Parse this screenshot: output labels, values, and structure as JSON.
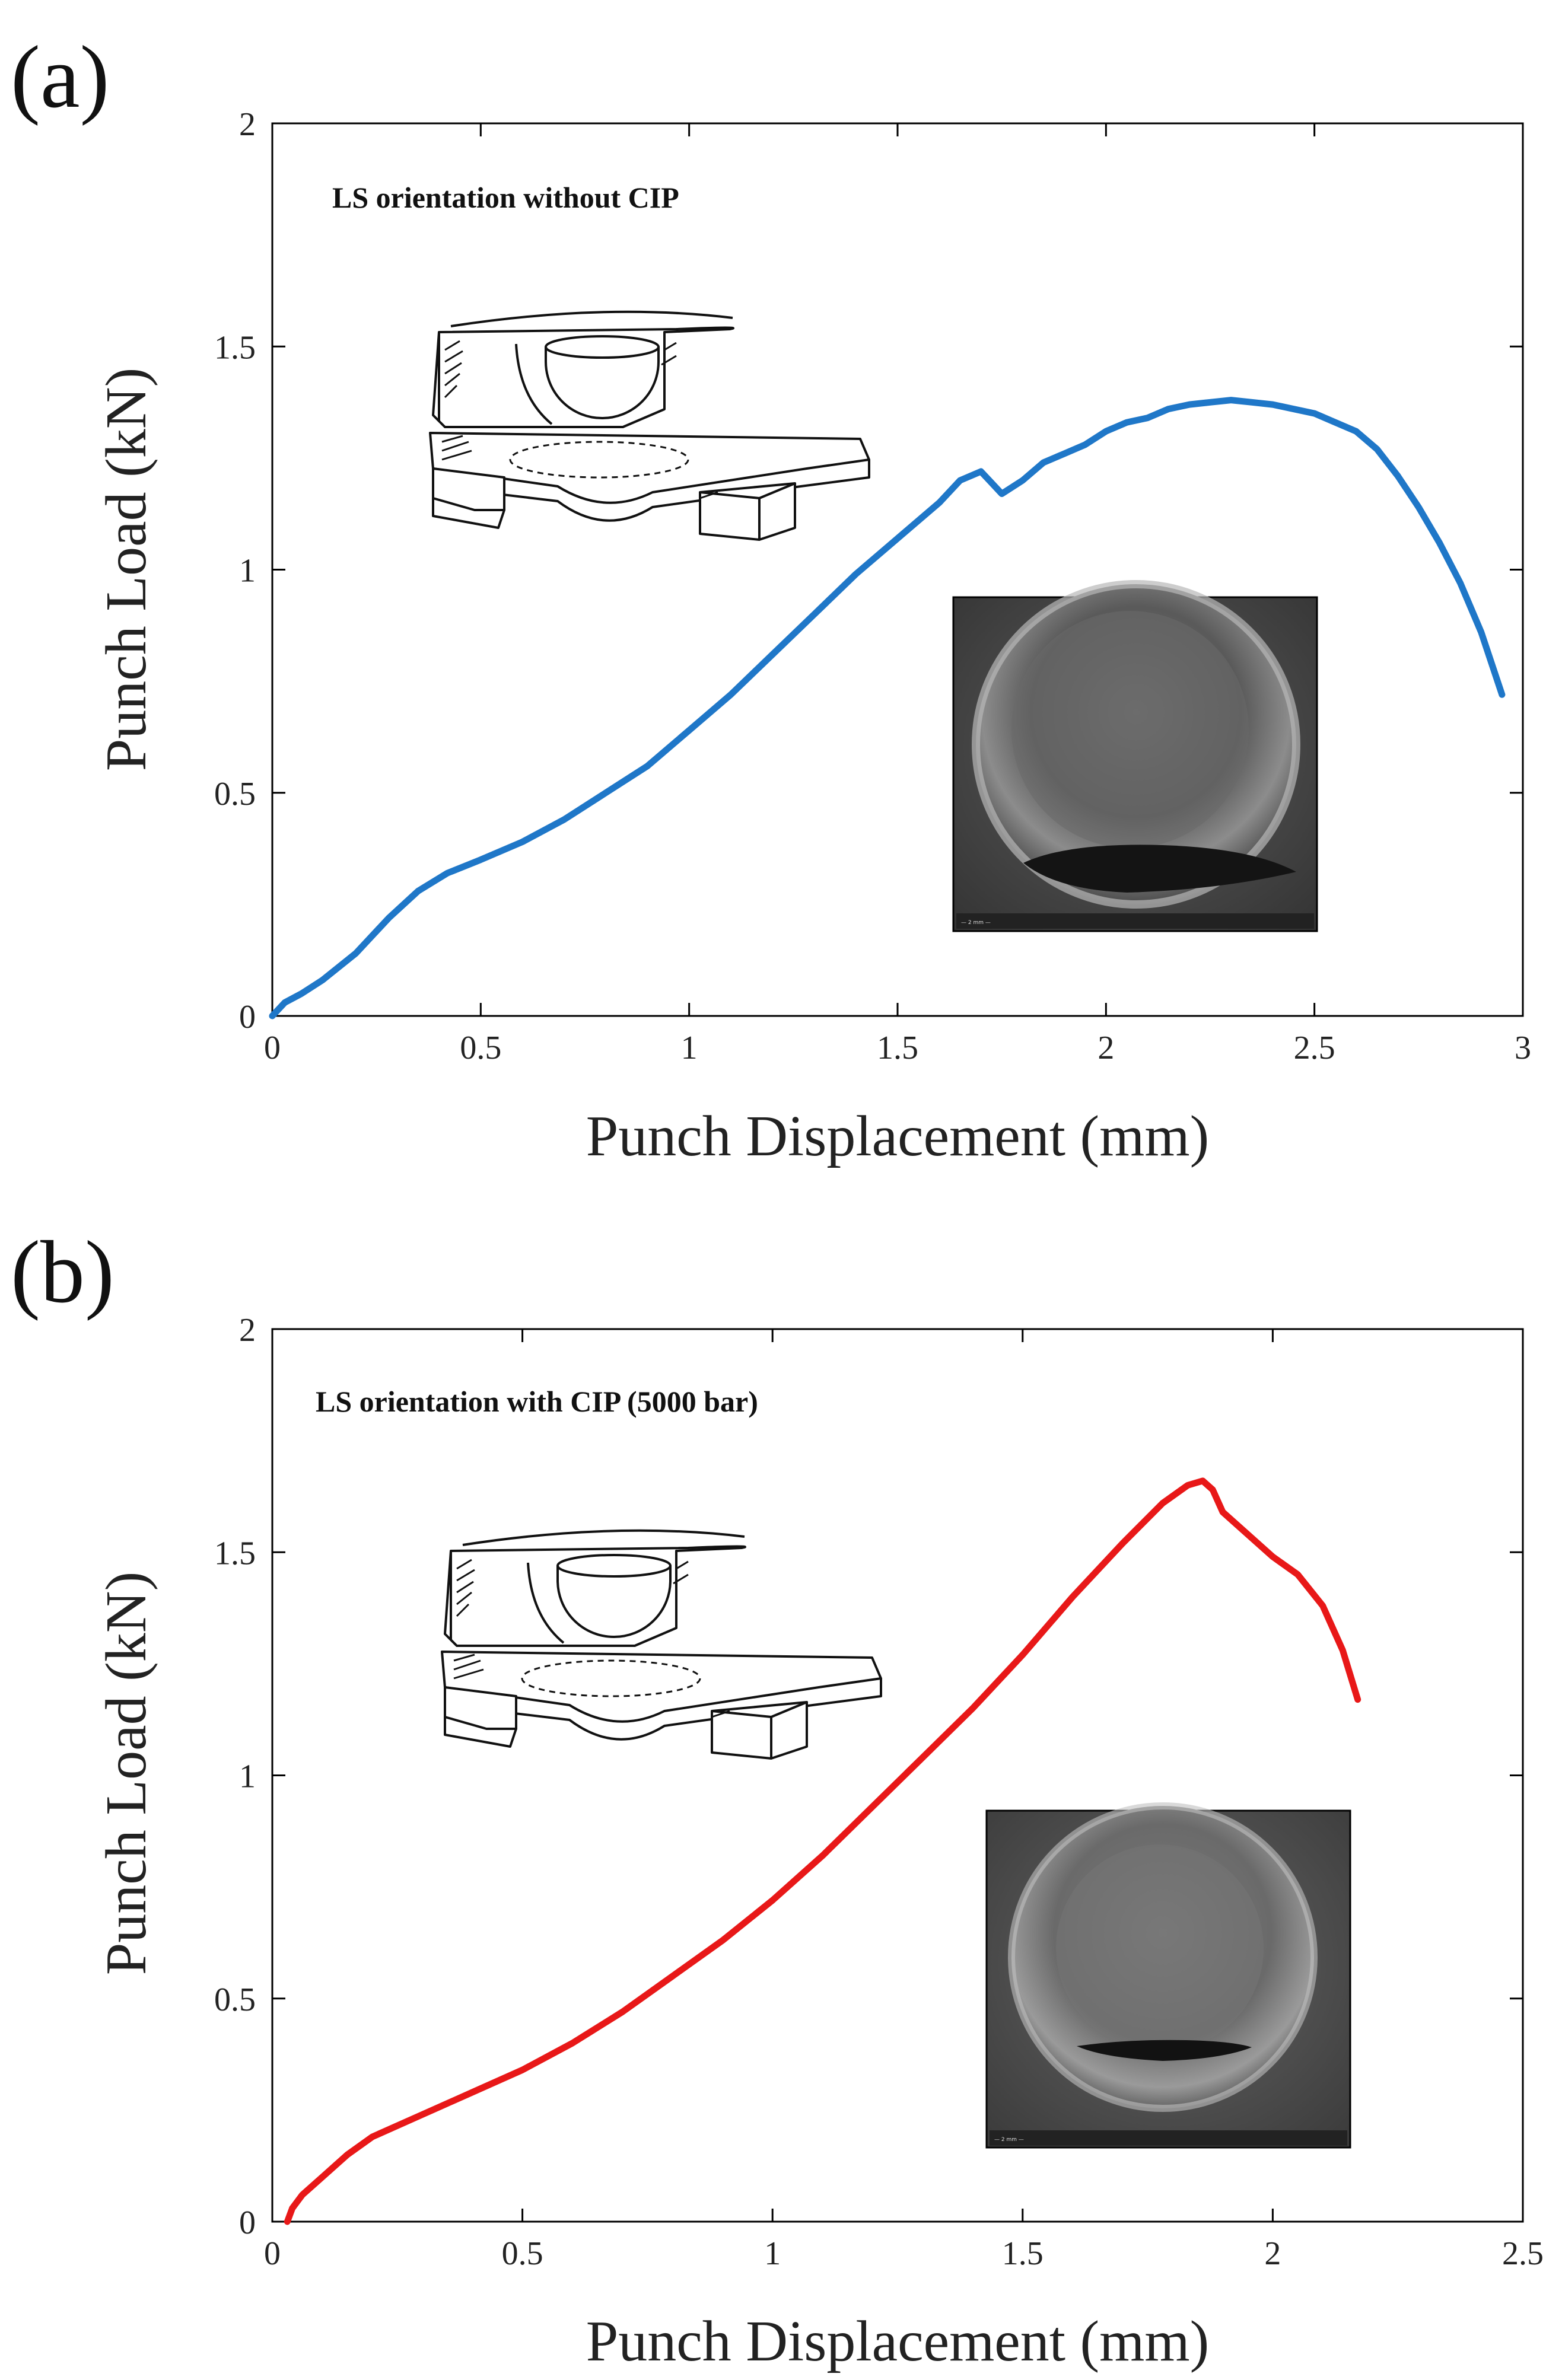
{
  "chart_data": [
    {
      "panel_label": "(a)",
      "type": "line",
      "annotation": "LS orientation without CIP",
      "xlabel": "Punch Displacement (mm)",
      "ylabel": "Punch Load (kN)",
      "xlim": [
        0,
        3
      ],
      "ylim": [
        0,
        2
      ],
      "xticks": [
        0,
        0.5,
        1,
        1.5,
        2,
        2.5,
        3
      ],
      "yticks": [
        0,
        0.5,
        1,
        1.5,
        2
      ],
      "xtick_labels": [
        "0",
        "0.5",
        "1",
        "1.5",
        "2",
        "2.5",
        "3"
      ],
      "ytick_labels": [
        "0",
        "0.5",
        "1",
        "1.5",
        "2"
      ],
      "grid": false,
      "series": [
        {
          "name": "LS orientation without CIP",
          "color": "#1f77c8",
          "x": [
            0.0,
            0.03,
            0.07,
            0.12,
            0.2,
            0.28,
            0.35,
            0.42,
            0.5,
            0.6,
            0.7,
            0.8,
            0.9,
            1.0,
            1.1,
            1.2,
            1.3,
            1.4,
            1.5,
            1.6,
            1.65,
            1.7,
            1.72,
            1.75,
            1.8,
            1.85,
            1.9,
            1.95,
            2.0,
            2.05,
            2.1,
            2.15,
            2.2,
            2.25,
            2.3,
            2.35,
            2.4,
            2.45,
            2.5,
            2.55,
            2.6,
            2.65,
            2.7,
            2.75,
            2.8,
            2.85,
            2.9,
            2.95
          ],
          "y": [
            0.0,
            0.03,
            0.05,
            0.08,
            0.14,
            0.22,
            0.28,
            0.32,
            0.35,
            0.39,
            0.44,
            0.5,
            0.56,
            0.64,
            0.72,
            0.81,
            0.9,
            0.99,
            1.07,
            1.15,
            1.2,
            1.22,
            1.2,
            1.17,
            1.2,
            1.24,
            1.26,
            1.28,
            1.31,
            1.33,
            1.34,
            1.36,
            1.37,
            1.375,
            1.38,
            1.375,
            1.37,
            1.36,
            1.35,
            1.33,
            1.31,
            1.27,
            1.21,
            1.14,
            1.06,
            0.97,
            0.86,
            0.72
          ]
        }
      ],
      "insets": [
        "small-punch-test-schematic",
        "sem-fracture-image"
      ]
    },
    {
      "panel_label": "(b)",
      "type": "line",
      "annotation": "LS orientation with CIP (5000 bar)",
      "xlabel": "Punch Displacement (mm)",
      "ylabel": "Punch Load (kN)",
      "xlim": [
        0,
        2.5
      ],
      "ylim": [
        0,
        2
      ],
      "xticks": [
        0,
        0.5,
        1,
        1.5,
        2,
        2.5
      ],
      "yticks": [
        0,
        0.5,
        1,
        1.5,
        2
      ],
      "xtick_labels": [
        "0",
        "0.5",
        "1",
        "1.5",
        "2",
        "2.5"
      ],
      "ytick_labels": [
        "0",
        "0.5",
        "1",
        "1.5",
        "2"
      ],
      "grid": false,
      "series": [
        {
          "name": "LS orientation with CIP (5000 bar)",
          "color": "#e81818",
          "x": [
            0.03,
            0.04,
            0.06,
            0.1,
            0.15,
            0.2,
            0.3,
            0.4,
            0.5,
            0.6,
            0.7,
            0.8,
            0.9,
            1.0,
            1.1,
            1.2,
            1.3,
            1.4,
            1.5,
            1.6,
            1.7,
            1.78,
            1.83,
            1.86,
            1.88,
            1.9,
            1.95,
            2.0,
            2.05,
            2.1,
            2.14,
            2.17
          ],
          "y": [
            0.0,
            0.03,
            0.06,
            0.1,
            0.15,
            0.19,
            0.24,
            0.29,
            0.34,
            0.4,
            0.47,
            0.55,
            0.63,
            0.72,
            0.82,
            0.93,
            1.04,
            1.15,
            1.27,
            1.4,
            1.52,
            1.61,
            1.65,
            1.66,
            1.64,
            1.59,
            1.54,
            1.49,
            1.45,
            1.38,
            1.28,
            1.17
          ]
        }
      ],
      "insets": [
        "small-punch-test-schematic",
        "sem-fracture-image"
      ]
    }
  ]
}
